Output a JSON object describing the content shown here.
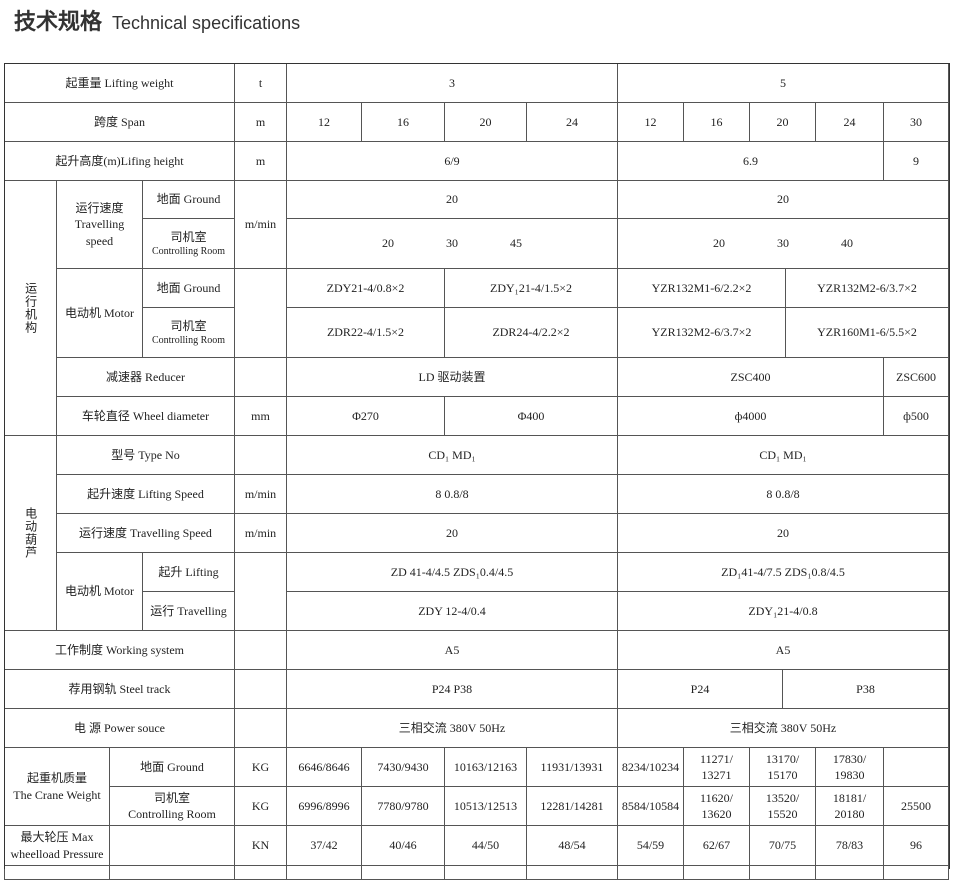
{
  "title": {
    "zh": "技术规格",
    "en": "Technical specifications"
  },
  "table": {
    "lifting_weight": {
      "label": "起重量 Lifting weight",
      "unit": "t",
      "values": [
        "3",
        "5"
      ]
    },
    "span": {
      "label": "跨度 Span",
      "unit": "m",
      "values": [
        "12",
        "16",
        "20",
        "24",
        "12",
        "16",
        "20",
        "24",
        "30"
      ]
    },
    "lifting_height": {
      "label": "起升高度(m)Lifing height",
      "unit": "m",
      "values": [
        "6/9",
        "6.9",
        "9"
      ]
    },
    "travel_mechanism": {
      "group": "运行机构",
      "travelling_speed": {
        "label": "运行速度\nTravelling\nspeed",
        "unit": "m/min",
        "ground": {
          "label": "地面 Ground",
          "values": [
            "20",
            "20"
          ]
        },
        "controlling_room": {
          "label": "司机室",
          "label_en": "Controlling Room",
          "values": [
            [
              "20",
              "30",
              "45"
            ],
            [
              "20",
              "30",
              "40"
            ]
          ]
        }
      },
      "motor": {
        "label": "电动机 Motor",
        "ground": {
          "label": "地面 Ground",
          "values": [
            "ZDY21-4/0.8×2",
            "ZDY₁21-4/1.5×2",
            "YZR132M1-6/2.2×2",
            "YZR132M2-6/3.7×2"
          ]
        },
        "controlling_room": {
          "label": "司机室",
          "label_en": "Controlling Room",
          "values": [
            "ZDR22-4/1.5×2",
            "ZDR24-4/2.2×2",
            "YZR132M2-6/3.7×2",
            "YZR160M1-6/5.5×2"
          ]
        }
      },
      "reducer": {
        "label": "减速器 Reducer",
        "values": [
          "LD 驱动装置",
          "ZSC400",
          "ZSC600"
        ]
      },
      "wheel_diameter": {
        "label": "车轮直径 Wheel diameter",
        "unit": "mm",
        "values": [
          "Φ270",
          "Φ400",
          "ф4000",
          "ф500"
        ]
      }
    },
    "electric_hoist": {
      "group": "电动葫芦",
      "type_no": {
        "label": "型号 Type No",
        "values": [
          "CD₁  MD₁",
          "CD₁  MD₁"
        ]
      },
      "lifting_speed": {
        "label": "起升速度 Lifting Speed",
        "unit": "m/min",
        "values": [
          "8  0.8/8",
          "8  0.8/8"
        ]
      },
      "travelling_speed": {
        "label": "运行速度 Travelling Speed",
        "unit": "m/min",
        "values": [
          "20",
          "20"
        ]
      },
      "motor": {
        "label": "电动机 Motor",
        "lifting": {
          "label": "起升 Lifting",
          "values": [
            "ZD  41-4/4.5    ZDS₁0.4/4.5",
            "ZD₁41-4/7.5      ZDS₁0.8/4.5"
          ]
        },
        "travelling": {
          "label": "运行 Travelling",
          "values": [
            "ZDY 12-4/0.4",
            "ZDY₁21-4/0.8"
          ]
        }
      }
    },
    "working_system": {
      "label": "工作制度 Working system",
      "values": [
        "A5",
        "A5"
      ]
    },
    "steel_track": {
      "label": "荐用钢轨 Steel track",
      "values": [
        "P24  P38",
        "P24",
        "P38"
      ]
    },
    "power_source": {
      "label": "电      源 Power souce",
      "values": [
        "三相交流 380V 50Hz",
        "三相交流 380V 50Hz"
      ]
    },
    "crane_weight": {
      "label": "起重机质量\nThe Crane Weight",
      "ground": {
        "label": "地面 Ground",
        "unit": "KG",
        "values": [
          "6646/8646",
          "7430/9430",
          "10163/12163",
          "11931/13931",
          "8234/10234",
          "11271/\n13271",
          "13170/\n15170",
          "17830/\n19830",
          ""
        ]
      },
      "controlling_room": {
        "label": "司机室\nControlling Room",
        "unit": "KG",
        "values": [
          "6996/8996",
          "7780/9780",
          "10513/12513",
          "12281/14281",
          "8584/10584",
          "11620/\n13620",
          "13520/\n15520",
          "18181/\n20180",
          "25500"
        ]
      }
    },
    "max_wheel_load": {
      "label": "最大轮压 Max\nwheelload Pressure",
      "unit": "KN",
      "values": [
        "37/42",
        "40/46",
        "44/50",
        "48/54",
        "54/59",
        "62/67",
        "70/75",
        "78/83",
        "96"
      ]
    }
  }
}
